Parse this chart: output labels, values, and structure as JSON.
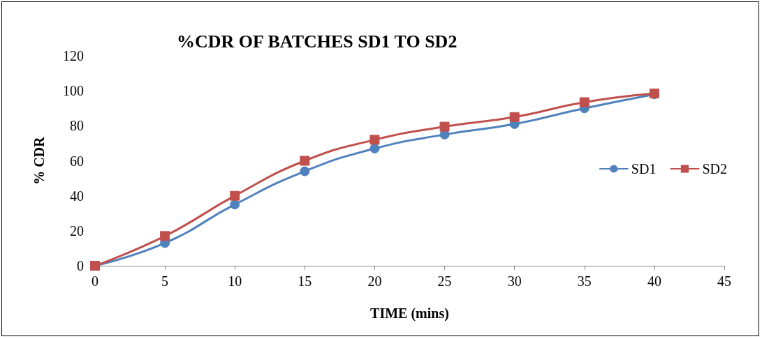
{
  "chart_data": {
    "type": "line",
    "title": "%CDR OF BATCHES SD1 TO SD2",
    "xlabel": "TIME (mins)",
    "ylabel": "% CDR",
    "x": [
      0,
      5,
      10,
      15,
      20,
      25,
      30,
      35,
      40
    ],
    "series": [
      {
        "name": "SD1",
        "color": "#4f81bd",
        "marker": "circle",
        "values": [
          0,
          13,
          35,
          54,
          67,
          75,
          81,
          90,
          98
        ]
      },
      {
        "name": "SD2",
        "color": "#c0504d",
        "marker": "square",
        "values": [
          0,
          17,
          40,
          60,
          72,
          79.5,
          85,
          93.5,
          98.5
        ]
      }
    ],
    "xlim": [
      0,
      45
    ],
    "xticks": [
      0,
      5,
      10,
      15,
      20,
      25,
      30,
      35,
      40,
      45
    ],
    "ylim": [
      0,
      120
    ],
    "yticks": [
      0,
      20,
      40,
      60,
      80,
      100,
      120
    ],
    "grid": false,
    "legend": "right",
    "line_style": "solid"
  }
}
